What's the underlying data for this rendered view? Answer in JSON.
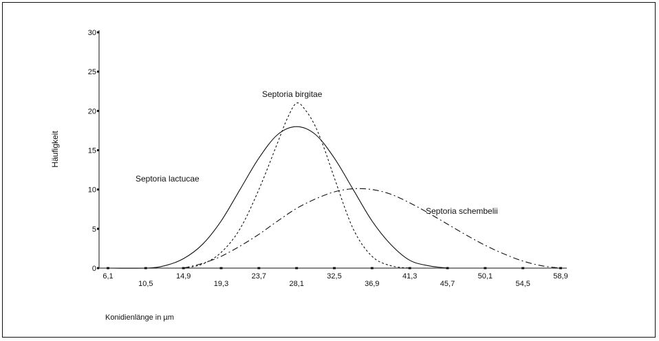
{
  "chart_data": {
    "type": "line",
    "title": "",
    "xlabel": "Konidienlänge in µm",
    "ylabel": "Häufigkeit",
    "xlim": [
      6.1,
      58.9
    ],
    "ylim": [
      0,
      30
    ],
    "x_ticks": [
      "6,1",
      "10,5",
      "14,9",
      "19,3",
      "23,7",
      "28,1",
      "32,5",
      "36,9",
      "41,3",
      "45,7",
      "50,1",
      "54,5",
      "58,9"
    ],
    "y_ticks": [
      "0",
      "5",
      "10",
      "15",
      "20",
      "25",
      "30"
    ],
    "grid": false,
    "legend": "inline labels",
    "series": [
      {
        "name": "Septoria lactucae",
        "style": "solid",
        "x": [
          6.1,
          10.5,
          12.7,
          14.9,
          17.1,
          19.3,
          21.5,
          23.7,
          25.9,
          28.1,
          30.3,
          32.5,
          34.7,
          36.9,
          39.1,
          41.3,
          43.5,
          45.7
        ],
        "y": [
          0,
          0,
          0.3,
          1.2,
          3.0,
          6.0,
          10.0,
          14.0,
          17.0,
          18.0,
          17.0,
          14.0,
          10.0,
          6.0,
          3.0,
          1.0,
          0.3,
          0
        ]
      },
      {
        "name": "Septoria birgitae",
        "style": "dotted",
        "x": [
          14.9,
          17.1,
          19.3,
          21.5,
          23.7,
          25.9,
          27.0,
          28.1,
          29.2,
          30.3,
          31.4,
          32.5,
          34.7,
          36.9,
          39.1,
          41.3
        ],
        "y": [
          0,
          0.5,
          2.0,
          5.0,
          10.0,
          16.0,
          19.0,
          21.0,
          20.0,
          18.0,
          15.0,
          11.5,
          5.0,
          1.5,
          0.3,
          0
        ]
      },
      {
        "name": "Septoria schembelii",
        "style": "dash-dot",
        "x": [
          14.9,
          17.1,
          19.3,
          21.5,
          23.7,
          25.9,
          28.1,
          30.3,
          32.5,
          34.7,
          36.9,
          39.1,
          41.3,
          43.5,
          45.7,
          47.9,
          50.1,
          52.3,
          54.5,
          56.7,
          58.9
        ],
        "y": [
          0,
          0.6,
          1.5,
          2.8,
          4.3,
          6.0,
          7.6,
          8.8,
          9.7,
          10.1,
          10.0,
          9.4,
          8.3,
          7.0,
          5.6,
          4.2,
          2.9,
          1.8,
          0.9,
          0.3,
          0
        ]
      }
    ]
  }
}
